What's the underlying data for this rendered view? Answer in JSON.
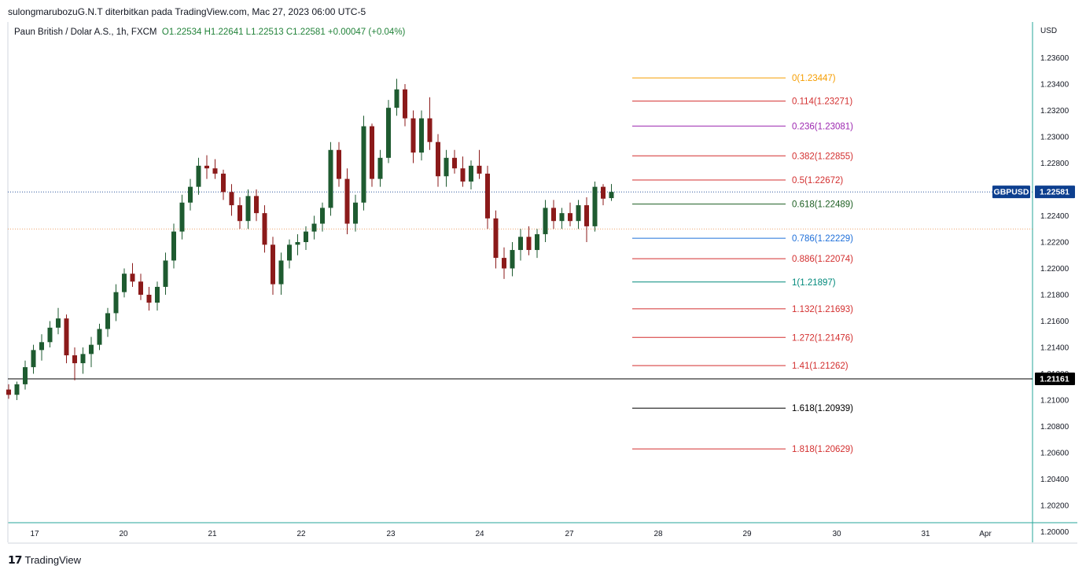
{
  "header": {
    "published": "sulongmarubozuG.N.T diterbitkan pada TradingView.com, Mac 27, 2023 06:00 UTC-5"
  },
  "legend": {
    "symbol_text": "Paun British / Dolar A.S., 1h, FXCM",
    "ohlc_text": "O1.22534  H1.22641  L1.22513  C1.22581  +0.00047 (+0.04%)"
  },
  "footer": {
    "brand": "TradingView"
  },
  "chart_data": {
    "type": "candlestick",
    "currency": "USD",
    "colors": {
      "up": "#1e5b30",
      "down": "#8b1a1a",
      "axis": "#26a69a",
      "price_tag": "#0d3f8f"
    },
    "y_ticks": [
      "1.23600",
      "1.23400",
      "1.23200",
      "1.23000",
      "1.22800",
      "1.22600",
      "1.22400",
      "1.22200",
      "1.22000",
      "1.21800",
      "1.21600",
      "1.21400",
      "1.21200",
      "1.21000",
      "1.20800",
      "1.20600",
      "1.20400",
      "1.20200",
      "1.20000"
    ],
    "x_ticks": [
      "17",
      "20",
      "21",
      "22",
      "23",
      "24",
      "27",
      "28",
      "29",
      "30",
      "31",
      "Apr"
    ],
    "last_price": {
      "symbol": "GBPUSD",
      "value": "1.22581"
    },
    "horizontal_line": {
      "value": "1.21161",
      "color": "#000000"
    },
    "fib_levels": [
      {
        "label": "0(1.23447)",
        "price": 1.23447,
        "color": "#f59d00"
      },
      {
        "label": "0.114(1.23271)",
        "price": 1.23271,
        "color": "#d32f2f"
      },
      {
        "label": "0.236(1.23081)",
        "price": 1.23081,
        "color": "#9c27b0"
      },
      {
        "label": "0.382(1.22855)",
        "price": 1.22855,
        "color": "#d32f2f"
      },
      {
        "label": "0.5(1.22672)",
        "price": 1.22672,
        "color": "#d32f2f"
      },
      {
        "label": "0.618(1.22489)",
        "price": 1.22489,
        "color": "#1b5e20"
      },
      {
        "label": "0.786(1.22229)",
        "price": 1.22229,
        "color": "#1e6fd9"
      },
      {
        "label": "0.886(1.22074)",
        "price": 1.22074,
        "color": "#d32f2f"
      },
      {
        "label": "1(1.21897)",
        "price": 1.21897,
        "color": "#00897b"
      },
      {
        "label": "1.132(1.21693)",
        "price": 1.21693,
        "color": "#d32f2f"
      },
      {
        "label": "1.272(1.21476)",
        "price": 1.21476,
        "color": "#d32f2f"
      },
      {
        "label": "1.41(1.21262)",
        "price": 1.21262,
        "color": "#d32f2f"
      },
      {
        "label": "1.618(1.20939)",
        "price": 1.20939,
        "color": "#000000"
      },
      {
        "label": "1.818(1.20629)",
        "price": 1.20629,
        "color": "#d32f2f"
      }
    ],
    "candles": [
      {
        "x": 0.0,
        "o": 1.2108,
        "h": 1.2112,
        "l": 1.2101,
        "c": 1.2104
      },
      {
        "x": 1.0,
        "o": 1.2104,
        "h": 1.2114,
        "l": 1.21,
        "c": 1.2112
      },
      {
        "x": 2.0,
        "o": 1.2112,
        "h": 1.213,
        "l": 1.2108,
        "c": 1.2125
      },
      {
        "x": 3.0,
        "o": 1.2125,
        "h": 1.2142,
        "l": 1.212,
        "c": 1.2138
      },
      {
        "x": 4.0,
        "o": 1.2138,
        "h": 1.215,
        "l": 1.213,
        "c": 1.2144
      },
      {
        "x": 5.0,
        "o": 1.2144,
        "h": 1.216,
        "l": 1.214,
        "c": 1.2155
      },
      {
        "x": 6.0,
        "o": 1.2155,
        "h": 1.217,
        "l": 1.215,
        "c": 1.2162
      },
      {
        "x": 7.0,
        "o": 1.2162,
        "h": 1.2165,
        "l": 1.2128,
        "c": 1.2134
      },
      {
        "x": 8.0,
        "o": 1.2134,
        "h": 1.214,
        "l": 1.2115,
        "c": 1.2128
      },
      {
        "x": 9.0,
        "o": 1.2128,
        "h": 1.214,
        "l": 1.212,
        "c": 1.2135
      },
      {
        "x": 10.0,
        "o": 1.2135,
        "h": 1.2148,
        "l": 1.2125,
        "c": 1.2142
      },
      {
        "x": 11.0,
        "o": 1.2142,
        "h": 1.2158,
        "l": 1.2138,
        "c": 1.2154
      },
      {
        "x": 12.0,
        "o": 1.2154,
        "h": 1.217,
        "l": 1.2148,
        "c": 1.2166
      },
      {
        "x": 13.0,
        "o": 1.2166,
        "h": 1.2188,
        "l": 1.216,
        "c": 1.2182
      },
      {
        "x": 14.0,
        "o": 1.2182,
        "h": 1.22,
        "l": 1.2178,
        "c": 1.2196
      },
      {
        "x": 15.0,
        "o": 1.2196,
        "h": 1.2204,
        "l": 1.2186,
        "c": 1.219
      },
      {
        "x": 16.0,
        "o": 1.219,
        "h": 1.2196,
        "l": 1.2176,
        "c": 1.218
      },
      {
        "x": 17.0,
        "o": 1.218,
        "h": 1.2186,
        "l": 1.2168,
        "c": 1.2174
      },
      {
        "x": 18.0,
        "o": 1.2174,
        "h": 1.219,
        "l": 1.2168,
        "c": 1.2186
      },
      {
        "x": 19.0,
        "o": 1.2186,
        "h": 1.2212,
        "l": 1.218,
        "c": 1.2206
      },
      {
        "x": 20.0,
        "o": 1.2206,
        "h": 1.2234,
        "l": 1.22,
        "c": 1.2228
      },
      {
        "x": 21.0,
        "o": 1.2228,
        "h": 1.2256,
        "l": 1.2222,
        "c": 1.225
      },
      {
        "x": 22.0,
        "o": 1.225,
        "h": 1.2268,
        "l": 1.2244,
        "c": 1.2262
      },
      {
        "x": 23.0,
        "o": 1.2262,
        "h": 1.2284,
        "l": 1.2256,
        "c": 1.2278
      },
      {
        "x": 24.0,
        "o": 1.2278,
        "h": 1.2286,
        "l": 1.2268,
        "c": 1.2276
      },
      {
        "x": 25.0,
        "o": 1.2276,
        "h": 1.2283,
        "l": 1.2268,
        "c": 1.2272
      },
      {
        "x": 26.0,
        "o": 1.2272,
        "h": 1.2275,
        "l": 1.2252,
        "c": 1.2258
      },
      {
        "x": 27.0,
        "o": 1.2258,
        "h": 1.2264,
        "l": 1.224,
        "c": 1.2248
      },
      {
        "x": 28.0,
        "o": 1.2248,
        "h": 1.2254,
        "l": 1.223,
        "c": 1.2236
      },
      {
        "x": 29.0,
        "o": 1.2236,
        "h": 1.226,
        "l": 1.223,
        "c": 1.2255
      },
      {
        "x": 30.0,
        "o": 1.2255,
        "h": 1.226,
        "l": 1.2236,
        "c": 1.2242
      },
      {
        "x": 31.0,
        "o": 1.2242,
        "h": 1.2248,
        "l": 1.2212,
        "c": 1.2218
      },
      {
        "x": 32.0,
        "o": 1.2218,
        "h": 1.2224,
        "l": 1.218,
        "c": 1.2188
      },
      {
        "x": 33.0,
        "o": 1.2188,
        "h": 1.2212,
        "l": 1.218,
        "c": 1.2206
      },
      {
        "x": 34.0,
        "o": 1.2206,
        "h": 1.2222,
        "l": 1.22,
        "c": 1.2218
      },
      {
        "x": 35.0,
        "o": 1.2218,
        "h": 1.2226,
        "l": 1.221,
        "c": 1.222
      },
      {
        "x": 36.0,
        "o": 1.222,
        "h": 1.2232,
        "l": 1.2214,
        "c": 1.2228
      },
      {
        "x": 37.0,
        "o": 1.2228,
        "h": 1.224,
        "l": 1.2222,
        "c": 1.2234
      },
      {
        "x": 38.0,
        "o": 1.2234,
        "h": 1.225,
        "l": 1.2228,
        "c": 1.2246
      },
      {
        "x": 39.0,
        "o": 1.2246,
        "h": 1.2296,
        "l": 1.224,
        "c": 1.229
      },
      {
        "x": 40.0,
        "o": 1.229,
        "h": 1.2296,
        "l": 1.2262,
        "c": 1.2268
      },
      {
        "x": 41.0,
        "o": 1.2268,
        "h": 1.2276,
        "l": 1.2226,
        "c": 1.2234
      },
      {
        "x": 42.0,
        "o": 1.2234,
        "h": 1.2256,
        "l": 1.2228,
        "c": 1.225
      },
      {
        "x": 43.0,
        "o": 1.225,
        "h": 1.2316,
        "l": 1.2244,
        "c": 1.2308
      },
      {
        "x": 44.0,
        "o": 1.2308,
        "h": 1.231,
        "l": 1.2262,
        "c": 1.2268
      },
      {
        "x": 45.0,
        "o": 1.2268,
        "h": 1.229,
        "l": 1.2262,
        "c": 1.2284
      },
      {
        "x": 46.0,
        "o": 1.2284,
        "h": 1.2328,
        "l": 1.228,
        "c": 1.2322
      },
      {
        "x": 47.0,
        "o": 1.2322,
        "h": 1.2344,
        "l": 1.2316,
        "c": 1.2336
      },
      {
        "x": 48.0,
        "o": 1.2336,
        "h": 1.234,
        "l": 1.2308,
        "c": 1.2314
      },
      {
        "x": 49.0,
        "o": 1.2314,
        "h": 1.232,
        "l": 1.228,
        "c": 1.2288
      },
      {
        "x": 50.0,
        "o": 1.2288,
        "h": 1.232,
        "l": 1.2282,
        "c": 1.2314
      },
      {
        "x": 51.0,
        "o": 1.2314,
        "h": 1.233,
        "l": 1.229,
        "c": 1.2296
      },
      {
        "x": 52.0,
        "o": 1.2296,
        "h": 1.2302,
        "l": 1.2262,
        "c": 1.227
      },
      {
        "x": 53.0,
        "o": 1.227,
        "h": 1.229,
        "l": 1.2262,
        "c": 1.2284
      },
      {
        "x": 54.0,
        "o": 1.2284,
        "h": 1.229,
        "l": 1.2272,
        "c": 1.2276
      },
      {
        "x": 55.0,
        "o": 1.2276,
        "h": 1.2285,
        "l": 1.2262,
        "c": 1.2266
      },
      {
        "x": 56.0,
        "o": 1.2266,
        "h": 1.2282,
        "l": 1.226,
        "c": 1.2278
      },
      {
        "x": 57.0,
        "o": 1.2278,
        "h": 1.229,
        "l": 1.2268,
        "c": 1.2272
      },
      {
        "x": 58.0,
        "o": 1.2272,
        "h": 1.2278,
        "l": 1.223,
        "c": 1.2238
      },
      {
        "x": 59.0,
        "o": 1.2238,
        "h": 1.2244,
        "l": 1.22,
        "c": 1.2208
      },
      {
        "x": 60.0,
        "o": 1.2208,
        "h": 1.2216,
        "l": 1.2192,
        "c": 1.22
      },
      {
        "x": 61.0,
        "o": 1.22,
        "h": 1.222,
        "l": 1.2194,
        "c": 1.2214
      },
      {
        "x": 62.0,
        "o": 1.2214,
        "h": 1.223,
        "l": 1.2206,
        "c": 1.2224
      },
      {
        "x": 63.0,
        "o": 1.2224,
        "h": 1.2232,
        "l": 1.221,
        "c": 1.2214
      },
      {
        "x": 64.0,
        "o": 1.2214,
        "h": 1.223,
        "l": 1.2208,
        "c": 1.2226
      },
      {
        "x": 65.0,
        "o": 1.2226,
        "h": 1.2252,
        "l": 1.222,
        "c": 1.2246
      },
      {
        "x": 66.0,
        "o": 1.2246,
        "h": 1.2252,
        "l": 1.223,
        "c": 1.2236
      },
      {
        "x": 67.0,
        "o": 1.2236,
        "h": 1.2246,
        "l": 1.223,
        "c": 1.2242
      },
      {
        "x": 68.0,
        "o": 1.2242,
        "h": 1.225,
        "l": 1.2232,
        "c": 1.2236
      },
      {
        "x": 69.0,
        "o": 1.2236,
        "h": 1.2252,
        "l": 1.223,
        "c": 1.2248
      },
      {
        "x": 70.0,
        "o": 1.2248,
        "h": 1.2254,
        "l": 1.222,
        "c": 1.2232
      },
      {
        "x": 71.0,
        "o": 1.2232,
        "h": 1.2266,
        "l": 1.2228,
        "c": 1.2262
      },
      {
        "x": 72.0,
        "o": 1.2262,
        "h": 1.2264,
        "l": 1.2248,
        "c": 1.2253
      },
      {
        "x": 73.0,
        "o": 1.22534,
        "h": 1.22641,
        "l": 1.22513,
        "c": 1.22581
      }
    ]
  }
}
